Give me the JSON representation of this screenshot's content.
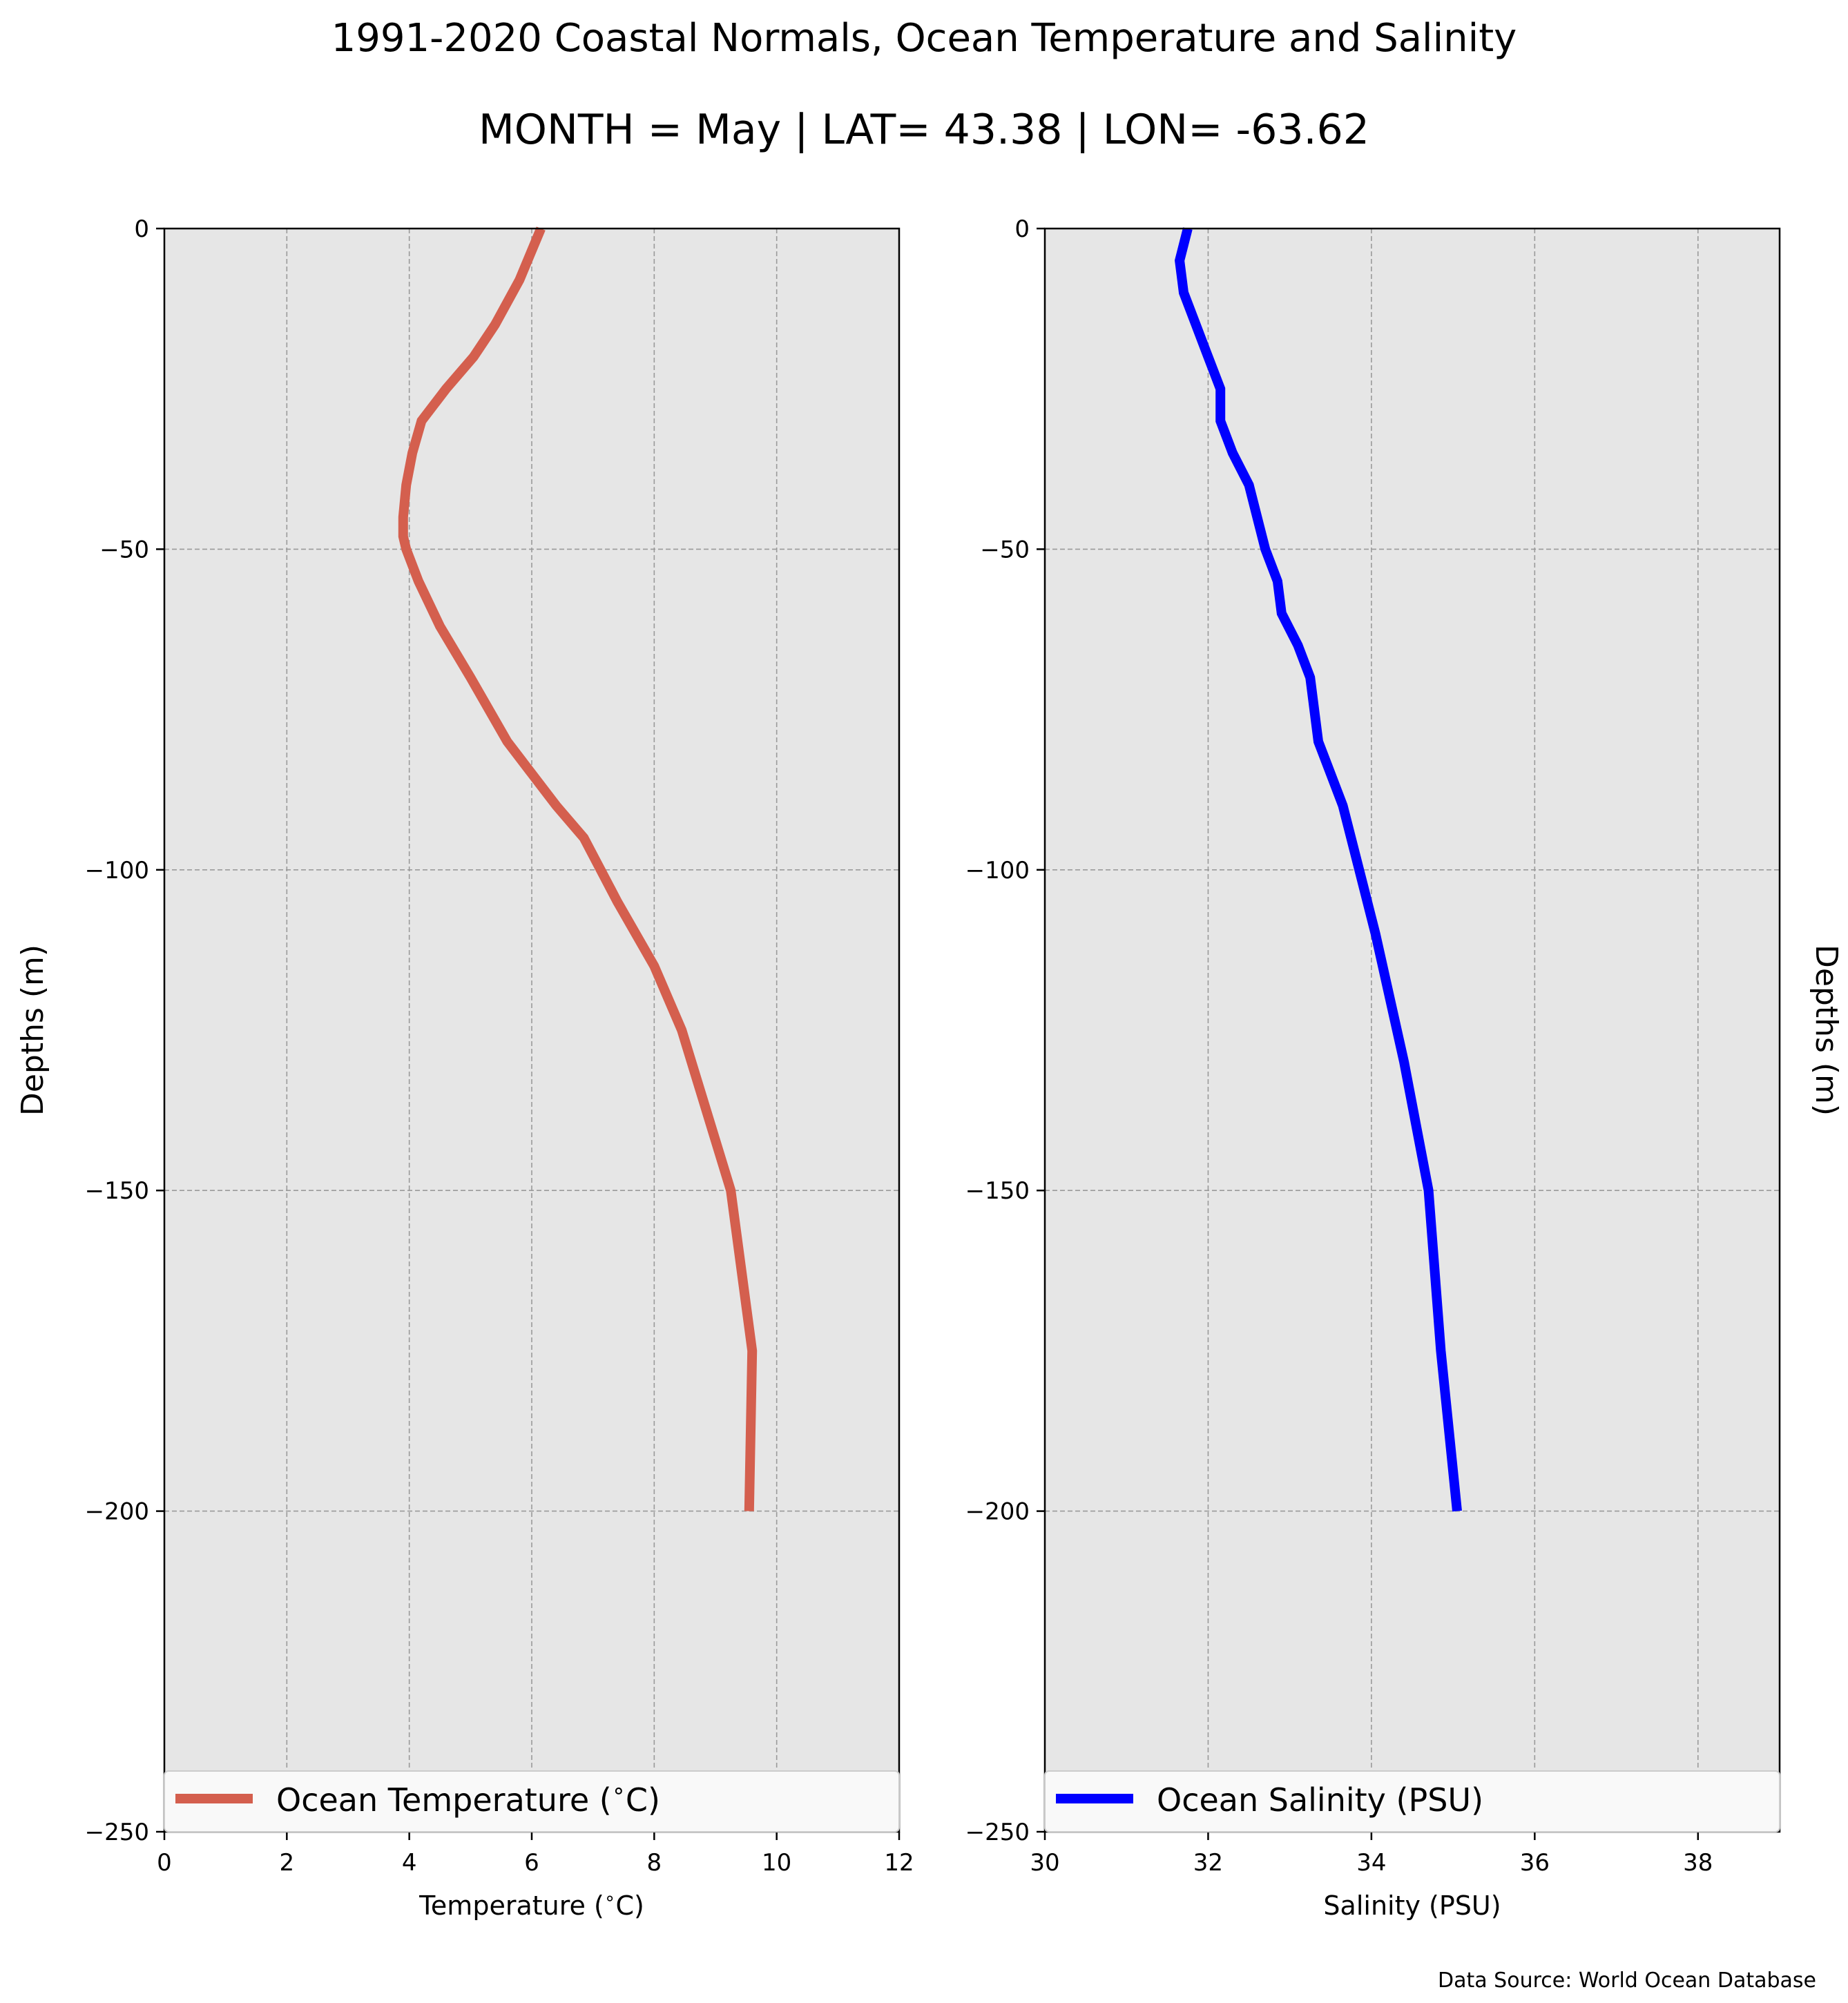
{
  "figure": {
    "title": "1991-2020 Coastal Normals, Ocean Temperature and Salinity",
    "subtitle": "MONTH = May | LAT= 43.38 | LON= -63.62",
    "source": "Data Source: World Ocean Database",
    "background": "#e6e6e6"
  },
  "chart_data": [
    {
      "type": "line",
      "title": "",
      "xlabel": "Temperature ($^\\circ$C)",
      "ylabel": "Depths (m)",
      "xlim": [
        0,
        12
      ],
      "ylim": [
        -250,
        0
      ],
      "xticks": [
        0,
        2,
        4,
        6,
        8,
        10,
        12
      ],
      "yticks": [
        0,
        -50,
        -100,
        -150,
        -200,
        -250
      ],
      "grid": true,
      "legend_position": "lower-left",
      "series": [
        {
          "name": "Ocean Temperature ($^\\circ$C)",
          "color": "#d45f4e",
          "x": [
            6.15,
            5.8,
            5.4,
            5.05,
            4.6,
            4.2,
            4.05,
            3.95,
            3.9,
            3.9,
            3.95,
            4.15,
            4.5,
            5.0,
            5.6,
            6.4,
            6.85,
            7.4,
            8.0,
            8.45,
            9.25,
            9.6,
            9.55
          ],
          "y": [
            0,
            -8,
            -15,
            -20,
            -25,
            -30,
            -35,
            -40,
            -45,
            -48,
            -50,
            -55,
            -62,
            -70,
            -80,
            -90,
            -95,
            -105,
            -115,
            -125,
            -150,
            -175,
            -200
          ]
        }
      ]
    },
    {
      "type": "line",
      "title": "",
      "xlabel": "Salinity (PSU)",
      "ylabel": "Depths (m)",
      "xlim": [
        30,
        39
      ],
      "ylim": [
        -250,
        0
      ],
      "xticks": [
        30,
        32,
        34,
        36,
        38
      ],
      "yticks": [
        0,
        -50,
        -100,
        -150,
        -200,
        -250
      ],
      "grid": true,
      "legend_position": "lower-left",
      "series": [
        {
          "name": "Ocean Salinity (PSU)",
          "color": "#0000ff",
          "x": [
            31.75,
            31.65,
            31.7,
            31.85,
            32.0,
            32.15,
            32.15,
            32.3,
            32.5,
            32.6,
            32.7,
            32.85,
            32.9,
            33.1,
            33.25,
            33.35,
            33.5,
            33.65,
            33.85,
            34.05,
            34.4,
            34.7,
            34.85,
            35.05
          ],
          "y": [
            0,
            -5,
            -10,
            -15,
            -20,
            -25,
            -30,
            -35,
            -40,
            -45,
            -50,
            -55,
            -60,
            -65,
            -70,
            -80,
            -85,
            -90,
            -100,
            -110,
            -130,
            -150,
            -175,
            -200
          ]
        }
      ]
    }
  ]
}
